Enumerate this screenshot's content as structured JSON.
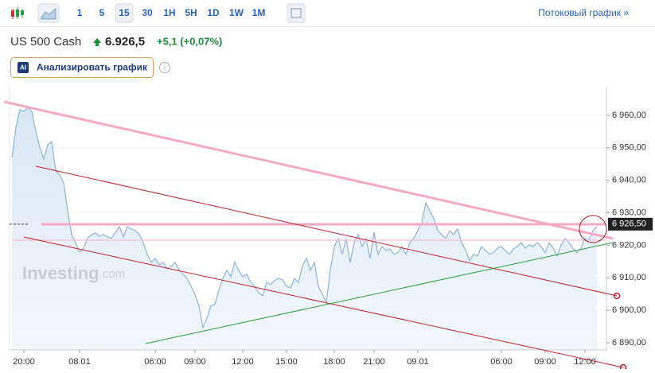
{
  "toolbar": {
    "intervals": [
      "1",
      "5",
      "15",
      "30",
      "1H",
      "5H",
      "1D",
      "1W",
      "1M"
    ],
    "stream_link": "Потоковый график »"
  },
  "instrument": {
    "name": "US 500 Cash",
    "price": "6.926,5",
    "change": "+5,1 (+0,07%)"
  },
  "analyze": {
    "badge": "AI",
    "label": "Анализировать график"
  },
  "watermark": {
    "brand": "Investing",
    "suffix": ".com"
  },
  "chart_data": {
    "type": "area",
    "series": [
      {
        "name": "US 500 Cash",
        "color": "#8fb3d6",
        "values": [
          6947.0,
          6956.3,
          6961.7,
          6961.2,
          6962.4,
          6961.2,
          6955.1,
          6950.2,
          6946.5,
          6951.0,
          6951.9,
          6942.9,
          6941.6,
          6939.2,
          6930.6,
          6923.3,
          6920.8,
          6917.9,
          6919.1,
          6922.1,
          6923.3,
          6923.8,
          6922.8,
          6923.3,
          6922.6,
          6922.1,
          6924.0,
          6925.7,
          6922.6,
          6925.7,
          6925.0,
          6924.5,
          6923.3,
          6920.8,
          6917.2,
          6914.7,
          6916.0,
          6914.0,
          6914.7,
          6912.8,
          6913.5,
          6914.7,
          6912.3,
          6911.1,
          6909.8,
          6907.4,
          6904.9,
          6901.3,
          6894.7,
          6897.6,
          6901.3,
          6901.8,
          6906.2,
          6909.8,
          6912.3,
          6910.3,
          6914.7,
          6912.3,
          6910.3,
          6911.1,
          6908.6,
          6907.4,
          6905.4,
          6904.5,
          6908.6,
          6907.9,
          6909.1,
          6909.8,
          6909.4,
          6907.4,
          6906.9,
          6909.8,
          6908.6,
          6913.5,
          6916.0,
          6912.3,
          6914.7,
          6907.4,
          6904.9,
          6902.5,
          6912.3,
          6919.6,
          6922.1,
          6917.2,
          6922.1,
          6914.7,
          6920.8,
          6923.3,
          6919.6,
          6922.1,
          6916.0,
          6924.0,
          6917.2,
          6919.6,
          6918.4,
          6918.9,
          6917.2,
          6917.7,
          6919.6,
          6917.2,
          6920.8,
          6922.1,
          6924.5,
          6927.0,
          6933.1,
          6930.6,
          6928.2,
          6924.5,
          6923.3,
          6922.1,
          6924.5,
          6923.3,
          6925.0,
          6920.8,
          6918.4,
          6915.2,
          6917.2,
          6916.7,
          6919.6,
          6918.4,
          6917.2,
          6917.7,
          6919.1,
          6919.6,
          6918.4,
          6917.2,
          6918.9,
          6919.6,
          6920.8,
          6919.1,
          6920.1,
          6919.6,
          6920.8,
          6919.6,
          6917.7,
          6920.8,
          6919.1,
          6916.7,
          6920.1,
          6922.1,
          6920.8,
          6919.1,
          6917.7,
          6919.1,
          6922.1,
          6921.6,
          6924.5,
          6925.7
        ]
      }
    ],
    "xlim": [
      -1,
      150
    ],
    "xticks": [
      {
        "value": 3,
        "label": "20:00"
      },
      {
        "value": 17,
        "label": "08.01"
      },
      {
        "value": 36,
        "label": "06:00"
      },
      {
        "value": 46,
        "label": "09:00"
      },
      {
        "value": 58,
        "label": "12:00"
      },
      {
        "value": 69,
        "label": "15:00"
      },
      {
        "value": 81,
        "label": "18:00"
      },
      {
        "value": 91,
        "label": "21:00"
      },
      {
        "value": 102,
        "label": "09.01"
      },
      {
        "value": 123,
        "label": "06:00"
      },
      {
        "value": 134,
        "label": "09:00"
      },
      {
        "value": 144,
        "label": "12:00"
      }
    ],
    "ylim": [
      6886,
      6969
    ],
    "yticks": [
      {
        "value": 6890,
        "label": "6 890,00"
      },
      {
        "value": 6900,
        "label": "6 900,00"
      },
      {
        "value": 6910,
        "label": "6 910,00"
      },
      {
        "value": 6920,
        "label": "6 920,00"
      },
      {
        "value": 6930,
        "label": "6 930,00"
      },
      {
        "value": 6940,
        "label": "6 940,00"
      },
      {
        "value": 6950,
        "label": "6 950,00"
      },
      {
        "value": 6960,
        "label": "6 960,00"
      }
    ],
    "last_price": {
      "value": 6926.5,
      "label": "6 926,50"
    }
  }
}
